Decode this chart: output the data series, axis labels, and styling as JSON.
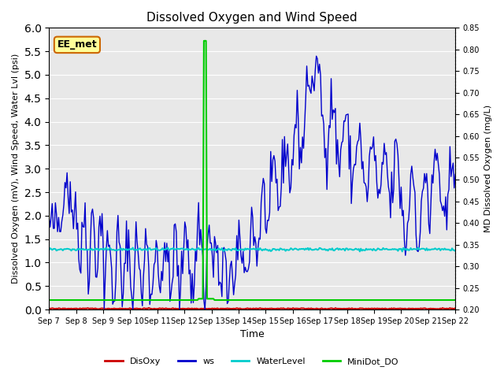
{
  "title": "Dissolved Oxygen and Wind Speed",
  "ylabel_left": "Dissolved Oxygen (mV), Wind Speed, Water Lvl (psi)",
  "ylabel_right": "MD Dissolved Oxygen (mg/L)",
  "xlabel": "Time",
  "ylim_left": [
    0.0,
    6.0
  ],
  "ylim_right": [
    0.2,
    0.85
  ],
  "bg_color": "#e8e8e8",
  "annotation_text": "EE_met",
  "annotation_box_color": "#ffff99",
  "annotation_box_edge": "#cc6600",
  "x_tick_labels": [
    "Sep 7",
    "Sep 8",
    "Sep 9",
    "Sep 10",
    "Sep 11",
    "Sep 12",
    "Sep 13",
    "Sep 14",
    "Sep 15",
    "Sep 16",
    "Sep 17",
    "Sep 18",
    "Sep 19",
    "Sep 20",
    "Sep 21",
    "Sep 22"
  ],
  "right_ticks": [
    0.2,
    0.25,
    0.3,
    0.35,
    0.4,
    0.45,
    0.5,
    0.55,
    0.6,
    0.65,
    0.7,
    0.75,
    0.8,
    0.85
  ],
  "colors": {
    "DisOxy": "#cc0000",
    "ws": "#0000cc",
    "WaterLevel": "#00cccc",
    "MiniDot_DO": "#00cc00"
  },
  "line_widths": {
    "DisOxy": 1.5,
    "ws": 1.0,
    "WaterLevel": 1.5,
    "MiniDot_DO": 1.5
  }
}
